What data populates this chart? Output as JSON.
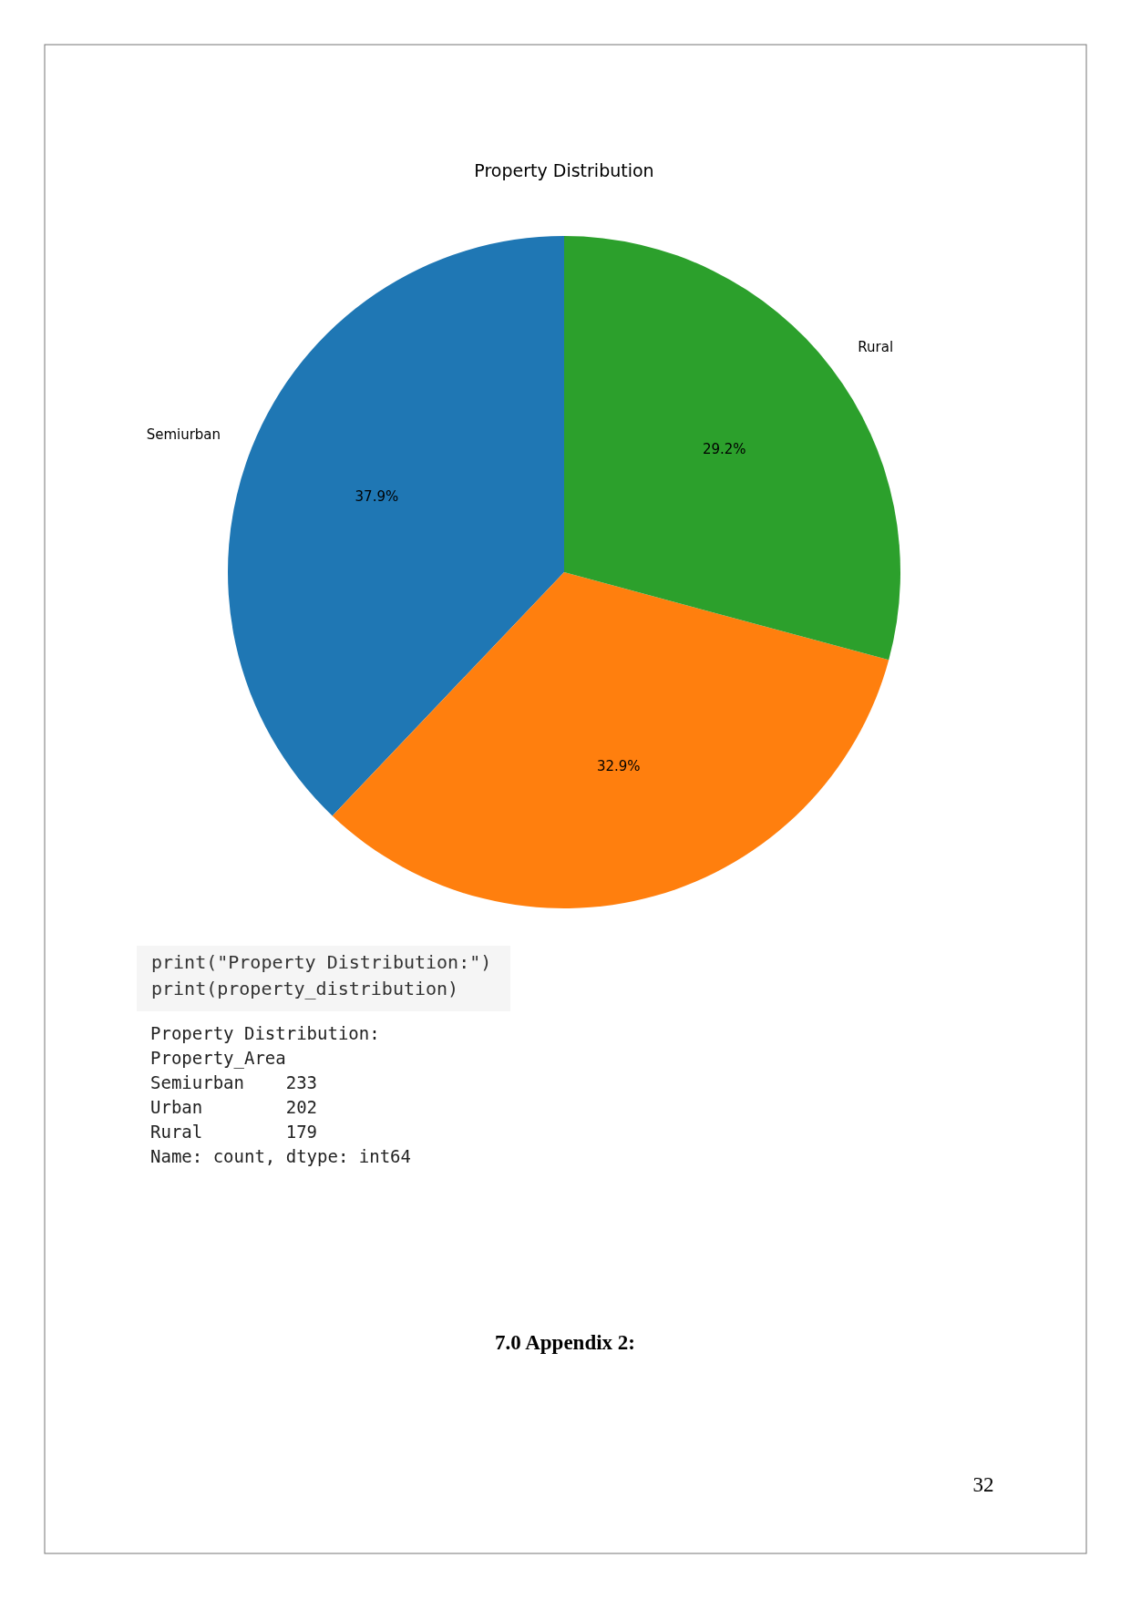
{
  "chart_data": {
    "type": "pie",
    "title": "Property Distribution",
    "categories": [
      "Semiurban",
      null,
      "Rural"
    ],
    "values": [
      37.9,
      32.9,
      29.2
    ],
    "colors": [
      "#1f77b4",
      "#ff7f0e",
      "#2ca02c"
    ],
    "value_labels": [
      "37.9%",
      "32.9%",
      "29.2%"
    ],
    "annotations": [
      "print(\"Property Distribution:\")",
      "print(property_distribution)",
      "Property Distribution:",
      "Property_Area",
      "Semiurban    233",
      "Urban        202",
      "Rural        179",
      "Name: count, dtype: int64",
      "7.0 Appendix 2:",
      "32"
    ]
  }
}
